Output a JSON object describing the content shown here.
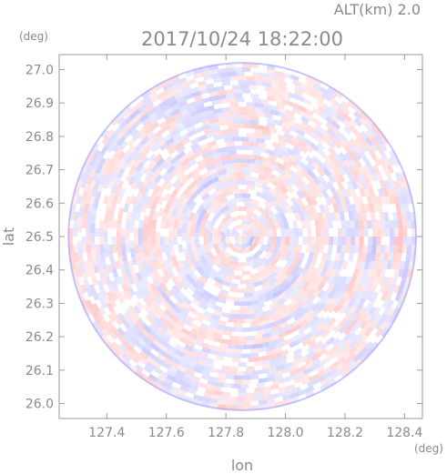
{
  "chart_data": {
    "type": "heatmap",
    "title": "2017/10/24 18:22:00",
    "subtitle": "ALT(km) 2.0",
    "xlabel": "lon",
    "ylabel": "lat",
    "x_unit": "(deg)",
    "y_unit": "(deg)",
    "xlim": [
      127.24,
      128.46
    ],
    "ylim": [
      25.955,
      27.045
    ],
    "x_ticks": [
      127.4,
      127.6,
      127.8,
      128.0,
      128.2,
      128.4
    ],
    "x_tick_labels": [
      "127.4",
      "127.6",
      "127.8",
      "128.0",
      "128.2",
      "128.4"
    ],
    "y_ticks": [
      26.0,
      26.1,
      26.2,
      26.3,
      26.4,
      26.5,
      26.6,
      26.7,
      26.8,
      26.9,
      27.0
    ],
    "y_tick_labels": [
      "26.0",
      "26.1",
      "26.2",
      "26.3",
      "26.4",
      "26.5",
      "26.6",
      "26.7",
      "26.8",
      "26.9",
      "27.0"
    ],
    "center": [
      127.855,
      26.5
    ],
    "radius_deg_lat": 0.52,
    "colors": {
      "positive": "#ff8080",
      "negative": "#8080ff",
      "zero": "#ffffff",
      "axis": "#9a9a9a",
      "text": "#8a8a8a"
    }
  }
}
